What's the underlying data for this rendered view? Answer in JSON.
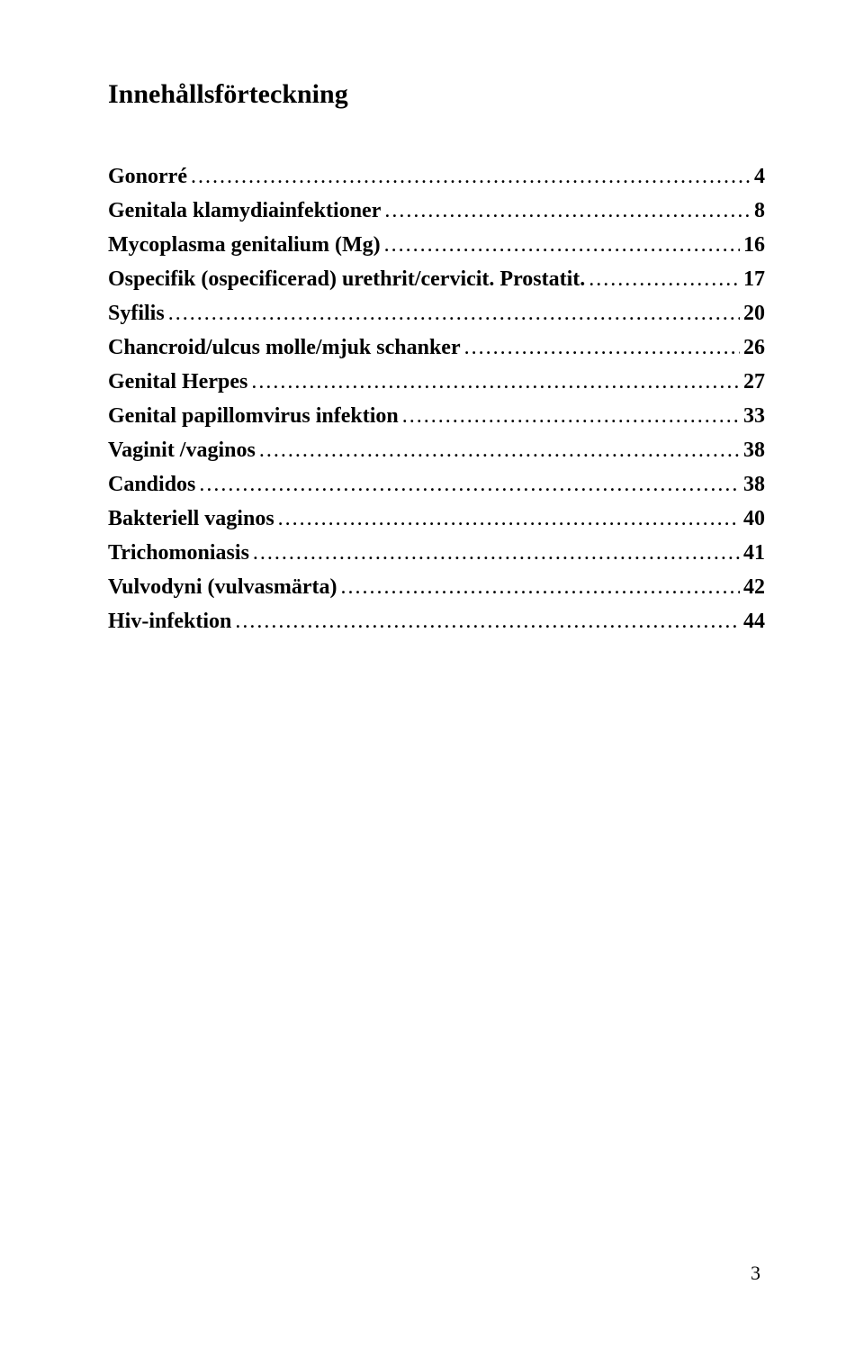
{
  "title": "Innehållsförteckning",
  "toc": [
    {
      "label": "Gonorré",
      "page": "4"
    },
    {
      "label": "Genitala klamydiainfektioner",
      "page": "8"
    },
    {
      "label": "Mycoplasma genitalium (Mg)",
      "page": "16"
    },
    {
      "label": "Ospecifik (ospecificerad)  urethrit/cervicit. Prostatit.",
      "page": "17"
    },
    {
      "label": "Syfilis",
      "page": "20"
    },
    {
      "label": "Chancroid/ulcus molle/mjuk schanker",
      "page": "26"
    },
    {
      "label": "Genital Herpes",
      "page": "27"
    },
    {
      "label": "Genital papillomvirus infektion",
      "page": "33"
    },
    {
      "label": "Vaginit /vaginos",
      "page": "38"
    },
    {
      "label": "Candidos",
      "page": "38"
    },
    {
      "label": "Bakteriell vaginos",
      "page": "40"
    },
    {
      "label": "Trichomoniasis",
      "page": "41"
    },
    {
      "label": "Vulvodyni (vulvasmärta)",
      "page": "42"
    },
    {
      "label": "Hiv-infektion",
      "page": "44"
    }
  ],
  "page_number": "3"
}
